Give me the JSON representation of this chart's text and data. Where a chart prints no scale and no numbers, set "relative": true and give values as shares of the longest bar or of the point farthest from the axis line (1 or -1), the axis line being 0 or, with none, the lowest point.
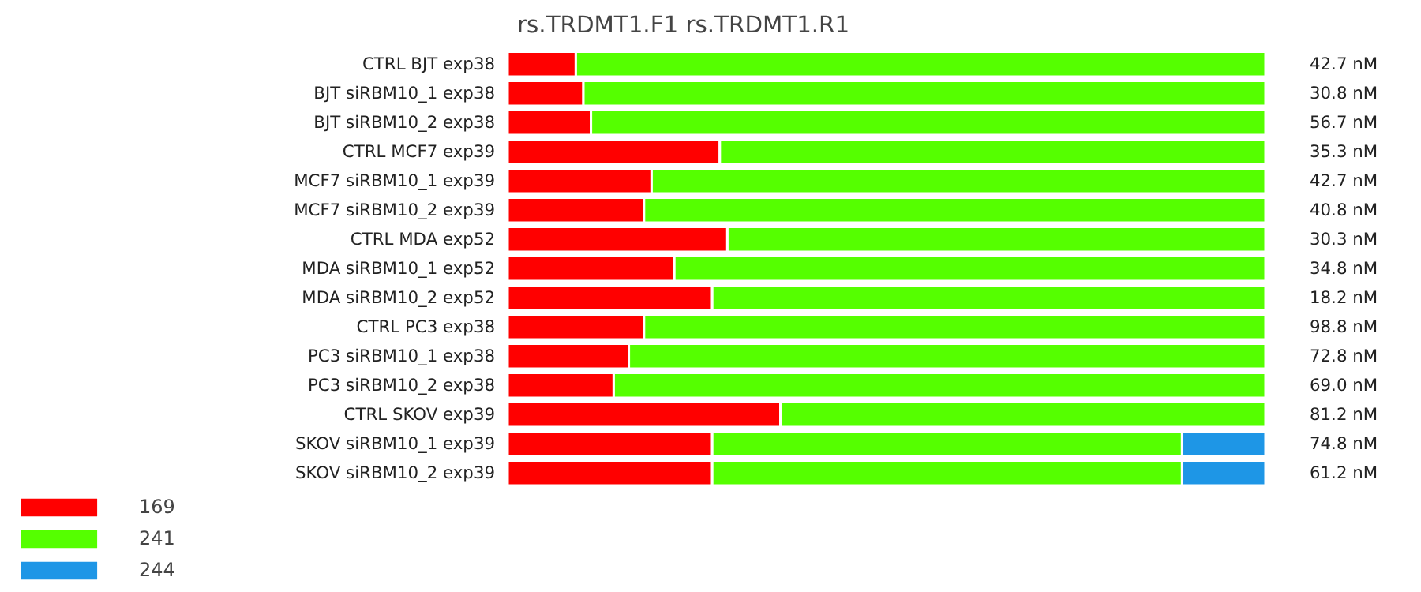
{
  "chart_data": {
    "type": "bar",
    "orientation": "horizontal",
    "stacked": true,
    "relative": true,
    "title": "rs.TRDMT1.F1  rs.TRDMT1.R1",
    "categories": [
      "CTRL BJT exp38",
      "BJT siRBM10_1 exp38",
      "BJT siRBM10_2 exp38",
      "CTRL MCF7 exp39",
      "MCF7 siRBM10_1 exp39",
      "MCF7 siRBM10_2 exp39",
      "CTRL MDA exp52",
      "MDA siRBM10_1 exp52",
      "MDA siRBM10_2 exp52",
      "CTRL PC3 exp38",
      "PC3 siRBM10_1 exp38",
      "PC3 siRBM10_2 exp38",
      "CTRL SKOV exp39",
      "SKOV siRBM10_1 exp39",
      "SKOV siRBM10_2 exp39"
    ],
    "series": [
      {
        "name": "169",
        "color": "#ff0000",
        "values": [
          0.09,
          0.1,
          0.11,
          0.28,
          0.19,
          0.18,
          0.29,
          0.22,
          0.27,
          0.18,
          0.16,
          0.14,
          0.36,
          0.27,
          0.27
        ]
      },
      {
        "name": "241",
        "color": "#55ff00",
        "values": [
          0.91,
          0.9,
          0.89,
          0.72,
          0.81,
          0.82,
          0.71,
          0.78,
          0.73,
          0.82,
          0.84,
          0.86,
          0.64,
          0.62,
          0.62
        ]
      },
      {
        "name": "244",
        "color": "#1e96e6",
        "values": [
          0,
          0,
          0,
          0,
          0,
          0,
          0,
          0,
          0,
          0,
          0,
          0,
          0,
          0.11,
          0.11
        ]
      }
    ],
    "annotations": [
      "42.7 nM",
      "30.8 nM",
      "56.7 nM",
      "35.3 nM",
      "42.7 nM",
      "40.8 nM",
      "30.3 nM",
      "34.8 nM",
      "18.2 nM",
      "98.8 nM",
      "72.8 nM",
      "69.0 nM",
      "81.2 nM",
      "74.8 nM",
      "61.2 nM"
    ],
    "legend": "bottom left",
    "grid": false
  }
}
